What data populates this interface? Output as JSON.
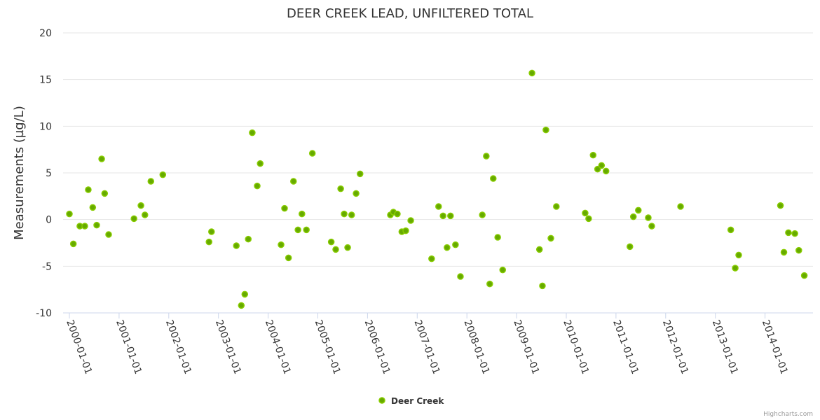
{
  "chart_data": {
    "type": "scatter",
    "title": "DEER CREEK LEAD, UNFILTERED TOTAL",
    "xlabel": "",
    "ylabel": "Measurements (µg/L)",
    "ylim": [
      -10,
      20
    ],
    "yticks": [
      -10,
      -5,
      0,
      5,
      10,
      15,
      20
    ],
    "xlim": [
      1999.873,
      2014.965
    ],
    "xticks": [
      {
        "v": 2000,
        "label": "2000-01-01"
      },
      {
        "v": 2001,
        "label": "2001-01-01"
      },
      {
        "v": 2002,
        "label": "2002-01-01"
      },
      {
        "v": 2003,
        "label": "2003-01-01"
      },
      {
        "v": 2004,
        "label": "2004-01-01"
      },
      {
        "v": 2005,
        "label": "2005-01-01"
      },
      {
        "v": 2006,
        "label": "2006-01-01"
      },
      {
        "v": 2007,
        "label": "2007-01-01"
      },
      {
        "v": 2008,
        "label": "2008-01-01"
      },
      {
        "v": 2009,
        "label": "2009-01-01"
      },
      {
        "v": 2010,
        "label": "2010-01-01"
      },
      {
        "v": 2011,
        "label": "2011-01-01"
      },
      {
        "v": 2012,
        "label": "2012-01-01"
      },
      {
        "v": 2013,
        "label": "2013-01-01"
      },
      {
        "v": 2014,
        "label": "2014-01-01"
      }
    ],
    "grid": true,
    "legend_position": "bottom-center",
    "series": [
      {
        "name": "Deer Creek",
        "color": "#66aa00",
        "points": [
          [
            2000.0,
            0.6
          ],
          [
            2000.08,
            -2.6
          ],
          [
            2000.21,
            -0.7
          ],
          [
            2000.31,
            -0.7
          ],
          [
            2000.38,
            3.2
          ],
          [
            2000.47,
            1.3
          ],
          [
            2000.55,
            -0.6
          ],
          [
            2000.65,
            6.5
          ],
          [
            2000.71,
            2.8
          ],
          [
            2000.79,
            -1.6
          ],
          [
            2001.3,
            0.1
          ],
          [
            2001.44,
            1.5
          ],
          [
            2001.52,
            0.5
          ],
          [
            2001.64,
            4.1
          ],
          [
            2001.88,
            4.8
          ],
          [
            2002.81,
            -2.4
          ],
          [
            2002.86,
            -1.3
          ],
          [
            2003.36,
            -2.8
          ],
          [
            2003.46,
            -9.2
          ],
          [
            2003.53,
            -8.0
          ],
          [
            2003.6,
            -2.1
          ],
          [
            2003.68,
            9.3
          ],
          [
            2003.78,
            3.6
          ],
          [
            2003.84,
            6.0
          ],
          [
            2004.26,
            -2.7
          ],
          [
            2004.33,
            1.2
          ],
          [
            2004.41,
            -4.1
          ],
          [
            2004.51,
            4.1
          ],
          [
            2004.6,
            -1.1
          ],
          [
            2004.68,
            0.6
          ],
          [
            2004.77,
            -1.1
          ],
          [
            2004.89,
            7.1
          ],
          [
            2005.27,
            -2.4
          ],
          [
            2005.36,
            -3.2
          ],
          [
            2005.46,
            3.3
          ],
          [
            2005.53,
            0.6
          ],
          [
            2005.6,
            -3.0
          ],
          [
            2005.68,
            0.5
          ],
          [
            2005.77,
            2.8
          ],
          [
            2005.85,
            4.9
          ],
          [
            2006.46,
            0.5
          ],
          [
            2006.52,
            0.8
          ],
          [
            2006.6,
            0.6
          ],
          [
            2006.69,
            -1.3
          ],
          [
            2006.77,
            -1.2
          ],
          [
            2006.87,
            -0.1
          ],
          [
            2007.29,
            -4.2
          ],
          [
            2007.43,
            1.4
          ],
          [
            2007.52,
            0.4
          ],
          [
            2007.6,
            -3.0
          ],
          [
            2007.67,
            0.4
          ],
          [
            2007.77,
            -2.7
          ],
          [
            2007.87,
            -6.1
          ],
          [
            2008.31,
            0.5
          ],
          [
            2008.39,
            6.8
          ],
          [
            2008.46,
            -6.9
          ],
          [
            2008.53,
            4.4
          ],
          [
            2008.62,
            -1.9
          ],
          [
            2008.72,
            -5.4
          ],
          [
            2009.31,
            15.7
          ],
          [
            2009.46,
            -3.2
          ],
          [
            2009.52,
            -7.1
          ],
          [
            2009.59,
            9.6
          ],
          [
            2009.69,
            -2.0
          ],
          [
            2009.8,
            1.4
          ],
          [
            2010.38,
            0.7
          ],
          [
            2010.45,
            0.1
          ],
          [
            2010.54,
            6.9
          ],
          [
            2010.63,
            5.4
          ],
          [
            2010.71,
            5.8
          ],
          [
            2010.8,
            5.2
          ],
          [
            2011.28,
            -2.9
          ],
          [
            2011.35,
            0.3
          ],
          [
            2011.45,
            1.0
          ],
          [
            2011.65,
            0.2
          ],
          [
            2011.72,
            -0.7
          ],
          [
            2012.3,
            1.4
          ],
          [
            2013.31,
            -1.1
          ],
          [
            2013.4,
            -5.2
          ],
          [
            2013.47,
            -3.8
          ],
          [
            2014.31,
            1.5
          ],
          [
            2014.38,
            -3.5
          ],
          [
            2014.47,
            -1.4
          ],
          [
            2014.6,
            -1.5
          ],
          [
            2014.68,
            -3.3
          ],
          [
            2014.79,
            -6.0
          ]
        ]
      }
    ],
    "credits": "Highcharts.com"
  }
}
